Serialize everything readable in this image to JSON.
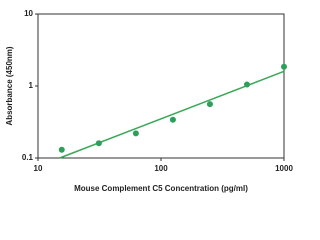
{
  "chart_data": {
    "type": "scatter",
    "xlabel": "Mouse Complement C5 Concentration (pg/ml)",
    "ylabel": "Absorbance (450nm)",
    "x": [
      15.6,
      31.25,
      62.5,
      125,
      250,
      500,
      1000
    ],
    "values": [
      0.13,
      0.16,
      0.22,
      0.34,
      0.56,
      1.05,
      1.85
    ],
    "color": "#2e9e5b",
    "trendline": {
      "x": [
        15,
        1000
      ],
      "y": [
        0.1,
        1.6
      ],
      "color": "#3aa858"
    },
    "xlim": [
      10,
      1000
    ],
    "ylim": [
      0.1,
      10
    ],
    "xticks": [
      10,
      100,
      1000
    ],
    "yticks": [
      0.1,
      1,
      10
    ],
    "xscale": "log",
    "yscale": "log",
    "grid": false
  }
}
